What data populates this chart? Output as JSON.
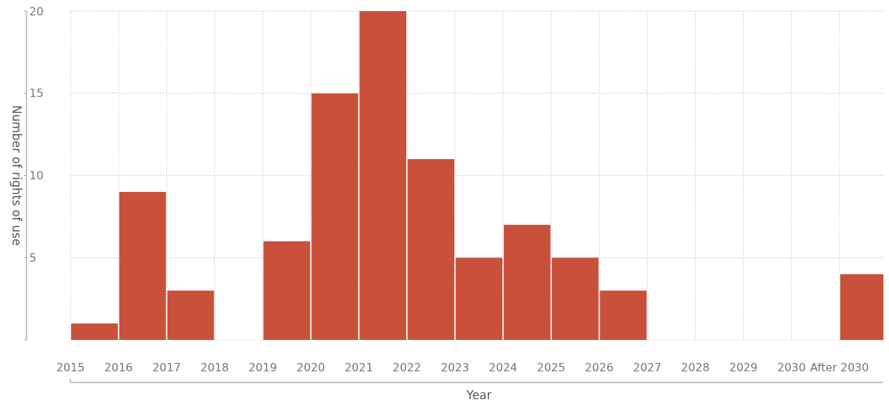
{
  "chart_data": {
    "type": "histogram",
    "xlabel": "Year",
    "ylabel": "Number of rights of use",
    "bins": [
      2015,
      2016,
      2017,
      2018,
      2019,
      2020,
      2021,
      2022,
      2023,
      2024,
      2025,
      2026,
      2027,
      2028,
      2029,
      2030,
      2031,
      2032
    ],
    "values": [
      1,
      9,
      3,
      0,
      6,
      15,
      20,
      11,
      5,
      7,
      5,
      3,
      0,
      0,
      0,
      0,
      4
    ],
    "color": "#c9503a",
    "xlim": [
      2015,
      2032
    ],
    "xticks": [
      2015,
      2016,
      2017,
      2018,
      2019,
      2020,
      2021,
      2022,
      2023,
      2024,
      2025,
      2026,
      2027,
      2028,
      2029,
      2030,
      {
        "value": 2031,
        "label": "After 2030"
      }
    ],
    "ylim": [
      0,
      20
    ],
    "yticks": [
      {
        "value": 0,
        "label": null
      },
      5,
      10,
      15,
      20
    ],
    "grid": true
  }
}
